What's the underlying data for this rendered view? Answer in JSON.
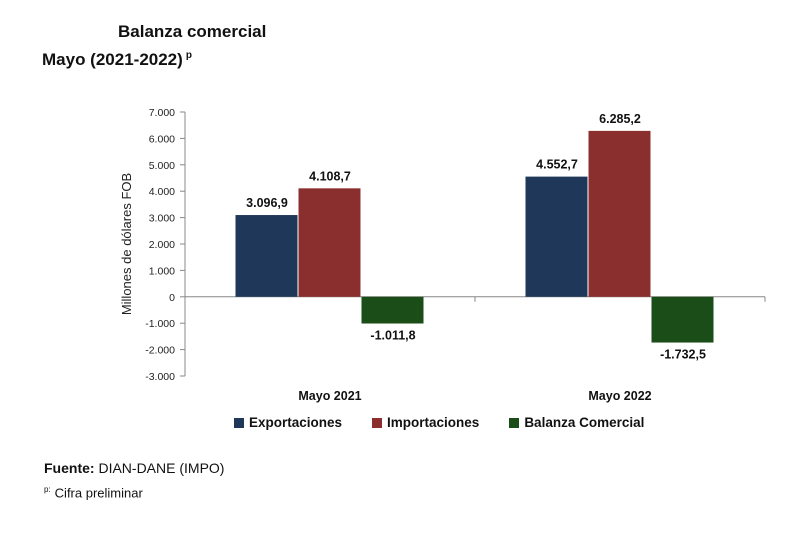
{
  "header": {
    "title": "Balanza comercial",
    "subtitle": "Mayo  (2021-2022)",
    "subtitle_mark": "p"
  },
  "footer": {
    "source_label": "Fuente:",
    "source_text": "DIAN-DANE (IMPO)",
    "note_mark": "p:",
    "note_text": "Cifra preliminar"
  },
  "chart_data": {
    "type": "bar",
    "ylabel": "Millones de dólares FOB",
    "ylim": [
      -3000,
      7000
    ],
    "yticks": [
      7000,
      6000,
      5000,
      4000,
      3000,
      2000,
      1000,
      0,
      -1000,
      -2000,
      -3000
    ],
    "ytick_labels": [
      "7.000",
      "6.000",
      "5.000",
      "4.000",
      "3.000",
      "2.000",
      "1.000",
      "0",
      "-1.000",
      "-2.000",
      "-3.000"
    ],
    "categories": [
      "Mayo 2021",
      "Mayo 2022"
    ],
    "series": [
      {
        "name": "Exportaciones",
        "color": "#1f3859",
        "values": [
          3096.9,
          4552.7
        ],
        "labels": [
          "3.096,9",
          "4.552,7"
        ]
      },
      {
        "name": "Importaciones",
        "color": "#8b2f2e",
        "values": [
          4108.7,
          6285.2
        ],
        "labels": [
          "4.108,7",
          "6.285,2"
        ]
      },
      {
        "name": "Balanza Comercial",
        "color": "#1a4d17",
        "values": [
          -1011.8,
          -1732.5
        ],
        "labels": [
          "-1.011,8",
          "-1.732,5"
        ]
      }
    ],
    "grid": false,
    "legend_position": "bottom"
  }
}
